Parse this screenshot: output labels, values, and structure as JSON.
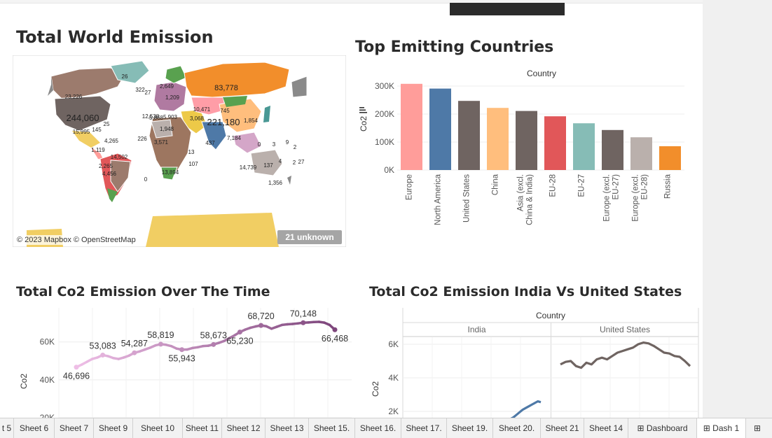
{
  "titles": {
    "world": "Total World Emission",
    "top": "Top Emitting Countries",
    "over_time": "Total Co2 Emission Over The Time",
    "india_us": "Total Co2 Emission India Vs United States"
  },
  "map": {
    "copyright": "© 2023 Mapbox © OpenStreetMap",
    "unknown_badge": "21 unknown",
    "labels": [
      "26",
      "322",
      "27",
      "2,649",
      "83,778",
      "23,226",
      "1,209",
      "10,471",
      "745",
      "244,060",
      "5,868",
      "3,068",
      "221,180",
      "1,854",
      "25",
      "12,538",
      "5,903",
      "15,995",
      "145",
      "1,948",
      "4,265",
      "226",
      "3,571",
      "437",
      "7,184",
      "1,119",
      "14,502",
      "2,265",
      "4,456",
      "13",
      "107",
      "9",
      "0",
      "3",
      "2",
      "137",
      "4",
      "2",
      "27",
      "14,739",
      "13,894",
      "0",
      "1,356"
    ]
  },
  "bar_axis": {
    "header": "Country",
    "ylabel": "Co2"
  },
  "over_time_axis": {
    "ylabel": "Co2"
  },
  "india_us_axis": {
    "header": "Country",
    "ylabel": "Co2",
    "panel_left": "India",
    "panel_right": "United States"
  },
  "chart_data": [
    {
      "type": "bar",
      "title": "Top Emitting Countries",
      "xlabel": "Country",
      "ylabel": "Co2",
      "ylim": [
        0,
        300000
      ],
      "yticks": [
        "0K",
        "100K",
        "200K",
        "300K"
      ],
      "categories": [
        "Europe",
        "North America",
        "United States",
        "China",
        "Asia (excl. China & India)",
        "EU-28",
        "EU-27",
        "Europe (excl. EU-27)",
        "Europe (excl. EU-28)",
        "Russia"
      ],
      "values": [
        308000,
        291000,
        247000,
        222000,
        211000,
        192000,
        167000,
        143000,
        117000,
        85000
      ],
      "colors": [
        "#ff9d9a",
        "#4e79a7",
        "#6f6461",
        "#ffbe7d",
        "#6f6461",
        "#e15759",
        "#86bcb6",
        "#6f6461",
        "#bab0ac",
        "#f28e2b"
      ]
    },
    {
      "type": "line",
      "title": "Total Co2 Emission Over The Time",
      "xlabel": "",
      "ylabel": "Co2",
      "ylim": [
        20000,
        80000
      ],
      "yticks": [
        "20K",
        "40K",
        "60K"
      ],
      "x": [
        1,
        2,
        3,
        4,
        5,
        6,
        7,
        8,
        9,
        10,
        11,
        12,
        13,
        14,
        15,
        16,
        17,
        18,
        19,
        20,
        21,
        22,
        23,
        24,
        25,
        26,
        27,
        28,
        29,
        30,
        31,
        32,
        33,
        34,
        35,
        36,
        37,
        38,
        39,
        40,
        41,
        42,
        43,
        44,
        45,
        46,
        47,
        48,
        49,
        50
      ],
      "values": [
        46696,
        48000,
        49500,
        51000,
        51800,
        53083,
        52500,
        51500,
        51000,
        51800,
        52800,
        54287,
        55000,
        56000,
        57000,
        58200,
        58819,
        58500,
        57800,
        56500,
        55943,
        56000,
        56800,
        57200,
        57800,
        58000,
        58673,
        59500,
        60500,
        62000,
        63500,
        65230,
        66500,
        67500,
        68200,
        68720,
        68300,
        67000,
        68000,
        69000,
        69300,
        69500,
        69800,
        70148,
        70300,
        70500,
        70600,
        70200,
        69000,
        66468
      ],
      "point_labels": [
        {
          "i": 0,
          "text": "46,696",
          "pos": "below"
        },
        {
          "i": 5,
          "text": "53,083",
          "pos": "above"
        },
        {
          "i": 11,
          "text": "54,287",
          "pos": "above"
        },
        {
          "i": 16,
          "text": "58,819",
          "pos": "above"
        },
        {
          "i": 20,
          "text": "55,943",
          "pos": "below"
        },
        {
          "i": 26,
          "text": "58,673",
          "pos": "above"
        },
        {
          "i": 31,
          "text": "65,230",
          "pos": "below"
        },
        {
          "i": 35,
          "text": "68,720",
          "pos": "above"
        },
        {
          "i": 43,
          "text": "70,148",
          "pos": "above"
        },
        {
          "i": 49,
          "text": "66,468",
          "pos": "below"
        }
      ]
    },
    {
      "type": "line",
      "title": "Total Co2 Emission India Vs United States",
      "xlabel": "Country",
      "ylabel": "Co2",
      "ylim": [
        1500,
        7000
      ],
      "yticks": [
        "2K",
        "4K",
        "6K"
      ],
      "series": [
        {
          "name": "India",
          "color": "#4e79a7",
          "values": [
            1300,
            1450,
            1550,
            1650,
            1800,
            1950,
            2100,
            2200,
            2300,
            2400,
            2500,
            2600,
            2550
          ]
        },
        {
          "name": "United States",
          "color": "#6f6461",
          "values": [
            4800,
            4950,
            5000,
            4700,
            4600,
            4900,
            4800,
            5100,
            5200,
            5100,
            5300,
            5500,
            5600,
            5700,
            5800,
            6000,
            6100,
            6050,
            5900,
            5700,
            5500,
            5450,
            5300,
            5250,
            5000,
            4700
          ]
        }
      ]
    }
  ],
  "tabs": [
    "t 5",
    "Sheet 6",
    "Sheet 7",
    "Sheet 9",
    "Sheet 10",
    "Sheet 11",
    "Sheet 12",
    "Sheet 13",
    "Sheet 15.",
    "Sheet 16.",
    "Sheet 17.",
    "Sheet 19.",
    "Sheet 20.",
    "Sheet 21",
    "Sheet 14",
    "Dashboard",
    "Dash 1"
  ]
}
